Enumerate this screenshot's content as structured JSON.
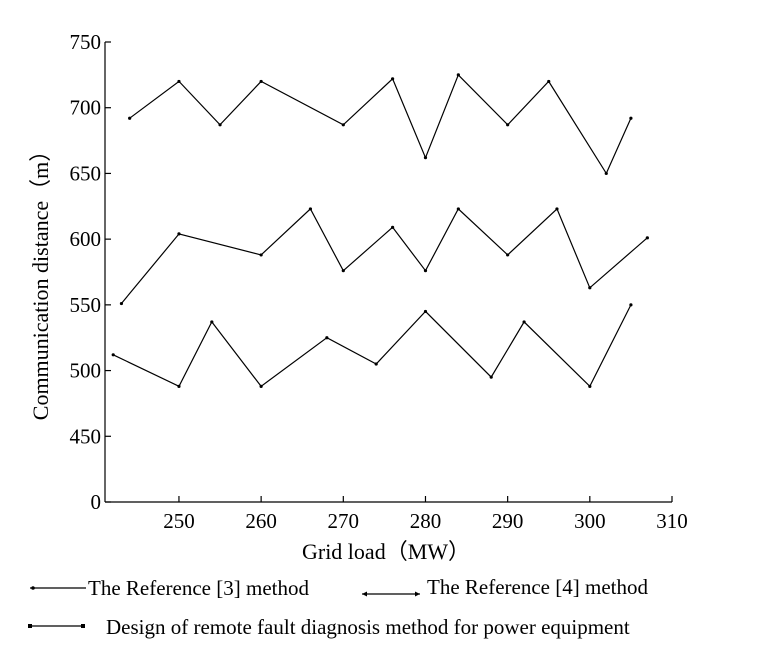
{
  "chart_data": {
    "type": "line",
    "title": "",
    "xlabel": "Grid load（MW）",
    "ylabel": "Communication distance（m）",
    "xlim": [
      241,
      310
    ],
    "ylim": [
      0,
      750
    ],
    "x_ticks": [
      250,
      260,
      270,
      280,
      290,
      300,
      310
    ],
    "y_ticks": [
      0,
      450,
      500,
      550,
      600,
      650,
      700,
      750
    ],
    "y_axis_break": "between 0 and 450 (450 is drawn one step above 0)",
    "grid": false,
    "legend_position": "bottom",
    "series": [
      {
        "name": "The Reference [3] method",
        "marker": "dot",
        "x": [
          244,
          250,
          255,
          260,
          270,
          276,
          280,
          284,
          290,
          295,
          302,
          305
        ],
        "y": [
          692,
          720,
          687,
          720,
          687,
          722,
          662,
          725,
          687,
          720,
          650,
          692
        ]
      },
      {
        "name": "The Reference [4] method",
        "marker": "arrow",
        "x": [
          243,
          250,
          260,
          266,
          270,
          276,
          280,
          284,
          290,
          296,
          300,
          307
        ],
        "y": [
          551,
          604,
          588,
          623,
          576,
          609,
          576,
          623,
          588,
          623,
          563,
          601
        ]
      },
      {
        "name": "Design of remote fault diagnosis method for power equipment",
        "marker": "square",
        "x": [
          242,
          250,
          254,
          260,
          268,
          274,
          280,
          288,
          292,
          300,
          305
        ],
        "y": [
          512,
          488,
          537,
          488,
          525,
          505,
          545,
          495,
          537,
          488,
          550
        ]
      }
    ]
  }
}
